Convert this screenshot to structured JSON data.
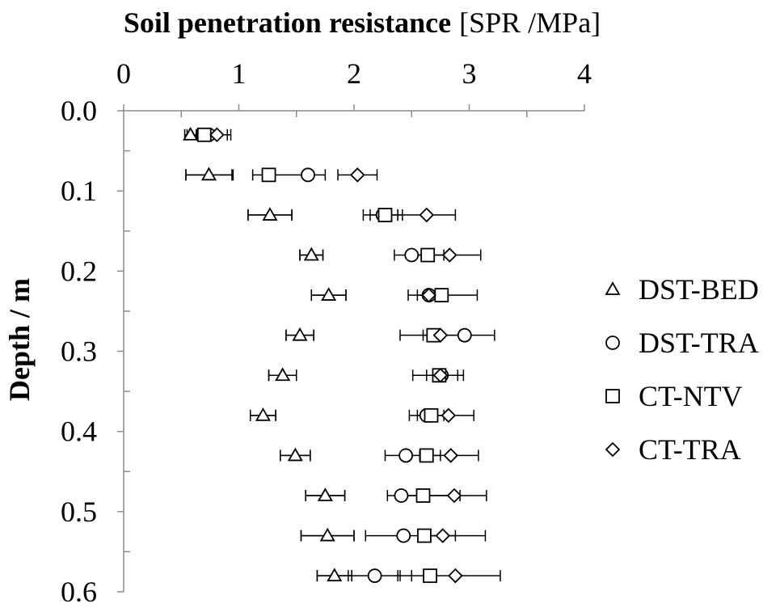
{
  "chart_data": {
    "type": "scatter",
    "title_bold": "Soil penetration resistance",
    "title_normal": "[SPR /MPa]",
    "ylabel": "Depth / m",
    "xlim": [
      0,
      4
    ],
    "ylim": [
      0.0,
      0.6
    ],
    "x_axis_position": "top",
    "y_axis_inverted": true,
    "x_ticks": [
      "0",
      "1",
      "2",
      "3",
      "4"
    ],
    "y_ticks": [
      "0.0",
      "0.1",
      "0.2",
      "0.3",
      "0.4",
      "0.5",
      "0.6"
    ],
    "grid": false,
    "legend_position": "right",
    "depths": [
      0.03,
      0.08,
      0.13,
      0.18,
      0.23,
      0.28,
      0.33,
      0.38,
      0.43,
      0.48,
      0.53,
      0.58
    ],
    "series": [
      {
        "name": "DST-BED",
        "marker": "triangle",
        "values": [
          0.58,
          0.74,
          1.27,
          1.63,
          1.78,
          1.53,
          1.38,
          1.21,
          1.49,
          1.75,
          1.77,
          1.83
        ],
        "error": [
          0.05,
          0.2,
          0.19,
          0.1,
          0.15,
          0.12,
          0.12,
          0.11,
          0.13,
          0.17,
          0.23,
          0.15
        ]
      },
      {
        "name": "DST-TRA",
        "marker": "circle",
        "values": [
          0.74,
          1.6,
          2.25,
          2.5,
          2.65,
          2.96,
          2.76,
          2.63,
          2.45,
          2.41,
          2.43,
          2.18
        ]
      },
      {
        "name": "CT-NTV",
        "marker": "square",
        "values": [
          0.7,
          1.26,
          2.27,
          2.64,
          2.76,
          2.69,
          2.74,
          2.67,
          2.63,
          2.6,
          2.61,
          2.66
        ]
      },
      {
        "name": "CT-TRA",
        "marker": "diamond",
        "values": [
          0.81,
          2.03,
          2.63,
          2.83,
          2.65,
          2.75,
          2.75,
          2.82,
          2.84,
          2.87,
          2.77,
          2.88
        ]
      }
    ],
    "error_bars": [
      {
        "depth": 0.03,
        "min": 0.55,
        "max": 0.9
      },
      {
        "depth": 0.03,
        "min": 0.64,
        "max": 0.93
      },
      {
        "depth": 0.08,
        "min": 0.54,
        "max": 0.95
      },
      {
        "depth": 0.08,
        "min": 1.12,
        "max": 1.75
      },
      {
        "depth": 0.08,
        "min": 1.86,
        "max": 2.2
      },
      {
        "depth": 0.13,
        "min": 1.08,
        "max": 1.46
      },
      {
        "depth": 0.13,
        "min": 2.08,
        "max": 2.42
      },
      {
        "depth": 0.13,
        "min": 2.14,
        "max": 2.38
      },
      {
        "depth": 0.13,
        "min": 2.38,
        "max": 2.88
      },
      {
        "depth": 0.18,
        "min": 1.53,
        "max": 1.73
      },
      {
        "depth": 0.18,
        "min": 2.35,
        "max": 3.1
      },
      {
        "depth": 0.18,
        "min": 2.5,
        "max": 2.78
      },
      {
        "depth": 0.23,
        "min": 1.63,
        "max": 1.93
      },
      {
        "depth": 0.23,
        "min": 2.47,
        "max": 3.07
      },
      {
        "depth": 0.23,
        "min": 2.55,
        "max": 2.75
      },
      {
        "depth": 0.28,
        "min": 1.41,
        "max": 1.65
      },
      {
        "depth": 0.28,
        "min": 2.4,
        "max": 3.22
      },
      {
        "depth": 0.28,
        "min": 2.6,
        "max": 2.92
      },
      {
        "depth": 0.33,
        "min": 1.26,
        "max": 1.5
      },
      {
        "depth": 0.33,
        "min": 2.51,
        "max": 2.95
      },
      {
        "depth": 0.33,
        "min": 2.63,
        "max": 2.9
      },
      {
        "depth": 0.38,
        "min": 1.1,
        "max": 1.32
      },
      {
        "depth": 0.38,
        "min": 2.48,
        "max": 3.04
      },
      {
        "depth": 0.38,
        "min": 2.55,
        "max": 2.78
      },
      {
        "depth": 0.43,
        "min": 1.36,
        "max": 1.62
      },
      {
        "depth": 0.43,
        "min": 2.27,
        "max": 3.08
      },
      {
        "depth": 0.43,
        "min": 2.57,
        "max": 2.75
      },
      {
        "depth": 0.48,
        "min": 1.58,
        "max": 1.92
      },
      {
        "depth": 0.48,
        "min": 2.29,
        "max": 3.15
      },
      {
        "depth": 0.48,
        "min": 2.45,
        "max": 2.92
      },
      {
        "depth": 0.53,
        "min": 1.54,
        "max": 2.0
      },
      {
        "depth": 0.53,
        "min": 2.1,
        "max": 3.14
      },
      {
        "depth": 0.53,
        "min": 2.66,
        "max": 2.88
      },
      {
        "depth": 0.58,
        "min": 1.68,
        "max": 1.98
      },
      {
        "depth": 0.58,
        "min": 1.95,
        "max": 2.4
      },
      {
        "depth": 0.58,
        "min": 2.38,
        "max": 2.5
      },
      {
        "depth": 0.58,
        "min": 2.5,
        "max": 3.27
      }
    ]
  }
}
